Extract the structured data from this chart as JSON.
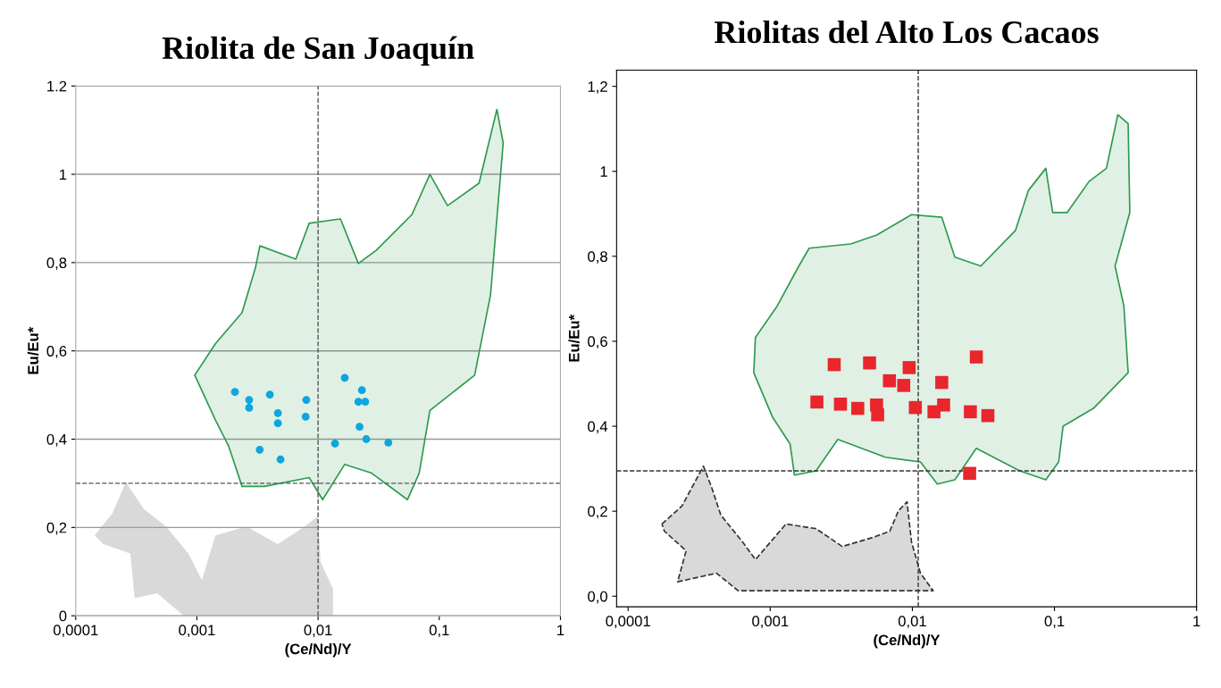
{
  "chart_data": [
    {
      "type": "scatter",
      "title": "Riolita de San Joaquín",
      "xlabel": "(Ce/Nd)/Y",
      "ylabel": "Eu/Eu*",
      "log": "x",
      "grid": "y",
      "legend": false,
      "xlim": [
        0.0001,
        1
      ],
      "xticks": [
        {
          "value": 0.0001,
          "label": "0,0001"
        },
        {
          "value": 0.001,
          "label": "0,001"
        },
        {
          "value": 0.01,
          "label": "0,01"
        },
        {
          "value": 0.1,
          "label": "0,1"
        },
        {
          "value": 1,
          "label": "1"
        }
      ],
      "ylim": [
        0,
        1.2
      ],
      "yticks": [
        0,
        {
          "value": 0.2,
          "label": "0,2"
        },
        {
          "value": 0.4,
          "label": "0,4"
        },
        {
          "value": 0.6,
          "label": "0,6"
        },
        {
          "value": 0.8,
          "label": "0,8"
        },
        1,
        1.2
      ],
      "ref_lines": [
        {
          "axis": "x",
          "value": 0.01,
          "line_style": "dashed",
          "color": "#555555"
        },
        {
          "axis": "y",
          "value": 0.3,
          "line_style": "dashed",
          "color": "#555555"
        }
      ],
      "series": [
        {
          "type": "area",
          "color": "#2e9a4e",
          "line_style": "solid",
          "x": [
            0.00096,
            0.00142,
            0.00236,
            0.00304,
            0.00331,
            0.00655,
            0.00844,
            0.0153,
            0.0215,
            0.0302,
            0.0596,
            0.0837,
            0.117,
            0.213,
            0.299,
            0.337,
            0.265,
            0.196,
            0.0837,
            0.0683,
            0.0547,
            0.0277,
            0.0166,
            0.0109,
            0.00844,
            0.00361,
            0.00236,
            0.00183,
            0.00142
          ],
          "values": [
            0.545,
            0.616,
            0.687,
            0.788,
            0.838,
            0.808,
            0.889,
            0.899,
            0.798,
            0.828,
            0.909,
            1.0,
            0.929,
            0.98,
            1.147,
            1.071,
            0.727,
            0.545,
            0.465,
            0.323,
            0.263,
            0.323,
            0.343,
            0.263,
            0.313,
            0.293,
            0.293,
            0.384,
            0.444
          ]
        },
        {
          "type": "area",
          "color": "#a0a0a0",
          "x": [
            0.000143,
            0.000201,
            0.000259,
            0.000364,
            0.000556,
            0.000851,
            0.0011,
            0.00142,
            0.00257,
            0.00466,
            0.00775,
            0.01,
            0.0105,
            0.0133,
            0.0133,
            0.00078,
            0.00047,
            0.000307,
            0.000282,
            0.000169
          ],
          "values": [
            0.182,
            0.232,
            0.303,
            0.242,
            0.202,
            0.141,
            0.081,
            0.182,
            0.202,
            0.162,
            0.202,
            0.226,
            0.121,
            0.061,
            0,
            0,
            0.051,
            0.04,
            0.141,
            0.162
          ]
        },
        {
          "color": "#0ea5e0",
          "marker": "circle",
          "x": [
            0.00206,
            0.0027,
            0.0027,
            0.0033,
            0.004,
            0.00466,
            0.00466,
            0.0049,
            0.008,
            0.0079,
            0.0138,
            0.0166,
            0.0215,
            0.023,
            0.0245,
            0.022,
            0.025,
            0.038
          ],
          "values": [
            0.507,
            0.489,
            0.471,
            0.376,
            0.501,
            0.459,
            0.436,
            0.354,
            0.489,
            0.451,
            0.39,
            0.539,
            0.485,
            0.511,
            0.485,
            0.428,
            0.4,
            0.392
          ]
        }
      ]
    },
    {
      "type": "scatter",
      "title": "Riolitas del Alto Los Cacaos",
      "xlabel": "(Ce/Nd)/Y",
      "ylabel": "Eu/Eu*",
      "log": "x",
      "legend": false,
      "xlim": [
        8.3e-05,
        1
      ],
      "xticks": [
        {
          "value": 0.0001,
          "label": "0,0001"
        },
        {
          "value": 0.001,
          "label": "0,001"
        },
        {
          "value": 0.01,
          "label": "0,01"
        },
        {
          "value": 0.1,
          "label": "0,1"
        },
        {
          "value": 1,
          "label": "1"
        }
      ],
      "ylim": [
        -0.025,
        1.238
      ],
      "yticks": [
        {
          "value": 0,
          "label": "0,0"
        },
        {
          "value": 0.2,
          "label": "0,2"
        },
        {
          "value": 0.4,
          "label": "0,4"
        },
        {
          "value": 0.6,
          "label": "0,6"
        },
        {
          "value": 0.8,
          "label": "0,8"
        },
        1,
        {
          "value": 1.2,
          "label": "1,2"
        }
      ],
      "ref_lines": [
        {
          "axis": "x",
          "value": 0.011,
          "line_style": "dashed",
          "color": "#333333"
        },
        {
          "axis": "y",
          "value": 0.295,
          "line_style": "dashed",
          "color": "#333333"
        }
      ],
      "series": [
        {
          "type": "area",
          "color": "#2e9a4e",
          "line_style": "solid",
          "x": [
            0.000787,
            0.00112,
            0.00159,
            0.00188,
            0.00369,
            0.00562,
            0.00986,
            0.0161,
            0.0199,
            0.0303,
            0.0532,
            0.0656,
            0.0869,
            0.0972,
            0.123,
            0.175,
            0.232,
            0.279,
            0.33,
            0.339,
            0.267,
            0.308,
            0.33,
            0.188,
            0.115,
            0.107,
            0.0869,
            0.057,
            0.0282,
            0.0199,
            0.015,
            0.0114,
            0.00647,
            0.00299,
            0.0021,
            0.00148,
            0.00138,
            0.00104,
            0.000766
          ],
          "values": [
            0.609,
            0.683,
            0.777,
            0.819,
            0.829,
            0.85,
            0.898,
            0.892,
            0.798,
            0.777,
            0.861,
            0.955,
            1.007,
            0.903,
            0.903,
            0.976,
            1.007,
            1.133,
            1.112,
            0.903,
            0.777,
            0.683,
            0.526,
            0.442,
            0.4,
            0.316,
            0.274,
            0.295,
            0.348,
            0.274,
            0.264,
            0.316,
            0.327,
            0.369,
            0.295,
            0.285,
            0.358,
            0.421,
            0.526
          ]
        },
        {
          "type": "area",
          "color": "#a0a0a0",
          "line_style": "dashed",
          "x": [
            0.000173,
            0.000239,
            0.000339,
            0.00039,
            0.000449,
            0.000638,
            0.000787,
            0.00129,
            0.0021,
            0.00321,
            0.00525,
            0.00694,
            0.00798,
            0.00918,
            0.00986,
            0.0114,
            0.014,
            0.000594,
            0.000419,
            0.000223,
            0.000256,
            0.00018
          ],
          "values": [
            0.17,
            0.212,
            0.306,
            0.253,
            0.191,
            0.128,
            0.086,
            0.17,
            0.159,
            0.117,
            0.138,
            0.153,
            0.201,
            0.222,
            0.128,
            0.054,
            0.013,
            0.013,
            0.054,
            0.034,
            0.107,
            0.153
          ]
        },
        {
          "color": "#e8262c",
          "marker": "square",
          "x": [
            0.00213,
            0.00282,
            0.00312,
            0.00413,
            0.005,
            0.0056,
            0.0057,
            0.0069,
            0.0087,
            0.0095,
            0.0105,
            0.0142,
            0.0161,
            0.0166,
            0.0256,
            0.0282,
            0.034,
            0.0253
          ],
          "values": [
            0.457,
            0.545,
            0.452,
            0.442,
            0.549,
            0.45,
            0.427,
            0.507,
            0.496,
            0.538,
            0.444,
            0.434,
            0.503,
            0.45,
            0.434,
            0.563,
            0.425,
            0.289
          ]
        }
      ]
    }
  ]
}
